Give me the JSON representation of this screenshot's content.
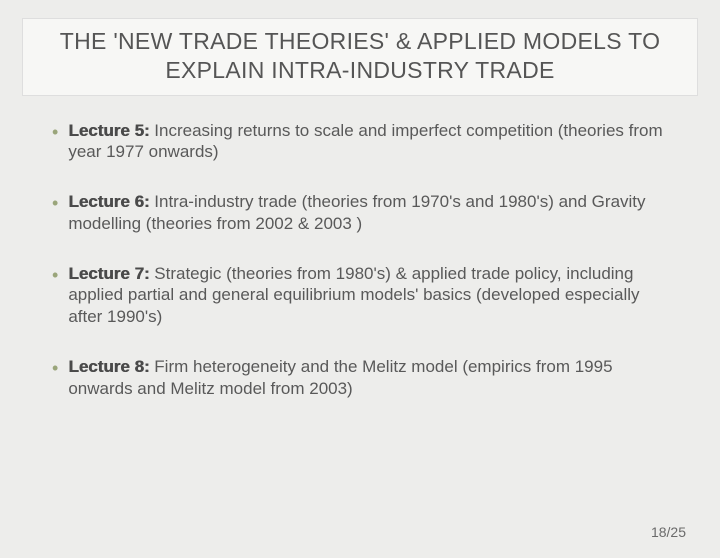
{
  "colors": {
    "background": "#ededeb",
    "title_box_bg": "#f7f7f5",
    "title_box_border": "#dedede",
    "text": "#595959",
    "bold_text": "#4a4a4a",
    "bullet": "#9aa57a"
  },
  "typography": {
    "title_fontsize": 23,
    "body_fontsize": 17,
    "pager_fontsize": 14,
    "font_family": "Arial"
  },
  "title": "THE 'NEW TRADE THEORIES' & APPLIED MODELS TO EXPLAIN INTRA-INDUSTRY TRADE",
  "bullets": [
    {
      "label": "Lecture 5:",
      "text": " Increasing returns to scale and imperfect competition (theories from year 1977 onwards)"
    },
    {
      "label": "Lecture 6:",
      "text": " Intra-industry trade (theories from 1970's and 1980's) and Gravity modelling (theories from 2002 & 2003 )"
    },
    {
      "label": "Lecture 7:",
      "text": " Strategic (theories from 1980's) & applied trade policy, including applied partial and general equilibrium models' basics (developed especially after 1990's)"
    },
    {
      "label": "Lecture 8:",
      "text": " Firm heterogeneity and the Melitz model (empirics from 1995 onwards and Melitz model from 2003)"
    }
  ],
  "pager": "18/25"
}
